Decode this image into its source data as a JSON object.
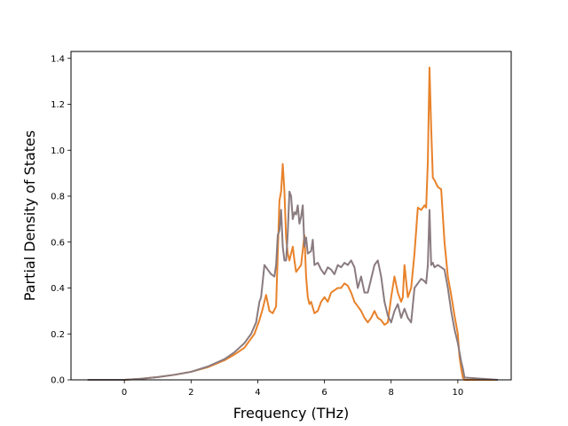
{
  "chart_data": {
    "type": "line",
    "title": "",
    "xlabel": "Frequency (THz)",
    "ylabel": "Partial Density of States",
    "xlim": [
      -1.6,
      11.6
    ],
    "ylim": [
      0.0,
      1.43
    ],
    "xticks": [
      0,
      2,
      4,
      6,
      8,
      10
    ],
    "yticks": [
      0.0,
      0.2,
      0.4,
      0.6,
      0.8,
      1.0,
      1.2,
      1.4
    ],
    "xtick_labels": [
      "0",
      "2",
      "4",
      "6",
      "8",
      "10"
    ],
    "ytick_labels": [
      "0.0",
      "0.2",
      "0.4",
      "0.6",
      "0.8",
      "1.0",
      "1.2",
      "1.4"
    ],
    "grid": false,
    "legend": "none",
    "series": [
      {
        "color": "#e8822a",
        "x": [
          -1.1,
          0.0,
          0.5,
          1.0,
          1.5,
          2.0,
          2.5,
          3.0,
          3.3,
          3.6,
          3.9,
          4.05,
          4.15,
          4.25,
          4.35,
          4.45,
          4.55,
          4.6,
          4.65,
          4.7,
          4.75,
          4.8,
          4.85,
          4.9,
          4.95,
          5.0,
          5.05,
          5.1,
          5.15,
          5.2,
          5.3,
          5.4,
          5.45,
          5.5,
          5.55,
          5.6,
          5.7,
          5.8,
          5.9,
          6.0,
          6.1,
          6.2,
          6.3,
          6.4,
          6.5,
          6.6,
          6.7,
          6.8,
          6.9,
          7.0,
          7.1,
          7.2,
          7.3,
          7.4,
          7.5,
          7.6,
          7.7,
          7.8,
          7.9,
          8.0,
          8.1,
          8.2,
          8.3,
          8.35,
          8.4,
          8.5,
          8.6,
          8.7,
          8.8,
          8.9,
          9.0,
          9.05,
          9.1,
          9.15,
          9.2,
          9.25,
          9.3,
          9.4,
          9.5,
          9.6,
          9.7,
          9.8,
          9.9,
          10.0,
          10.05,
          10.1,
          10.15,
          10.2,
          11.2
        ],
        "values": [
          0.0,
          0.0,
          0.005,
          0.012,
          0.022,
          0.035,
          0.055,
          0.085,
          0.11,
          0.14,
          0.2,
          0.26,
          0.31,
          0.37,
          0.3,
          0.29,
          0.32,
          0.55,
          0.78,
          0.82,
          0.94,
          0.82,
          0.62,
          0.55,
          0.52,
          0.55,
          0.58,
          0.52,
          0.47,
          0.48,
          0.5,
          0.63,
          0.45,
          0.36,
          0.33,
          0.34,
          0.29,
          0.3,
          0.34,
          0.36,
          0.34,
          0.38,
          0.39,
          0.4,
          0.4,
          0.42,
          0.41,
          0.38,
          0.34,
          0.32,
          0.3,
          0.27,
          0.25,
          0.27,
          0.3,
          0.27,
          0.26,
          0.24,
          0.25,
          0.36,
          0.45,
          0.38,
          0.34,
          0.36,
          0.5,
          0.36,
          0.4,
          0.55,
          0.75,
          0.74,
          0.76,
          0.75,
          0.95,
          1.36,
          1.1,
          0.88,
          0.87,
          0.84,
          0.83,
          0.6,
          0.45,
          0.37,
          0.28,
          0.2,
          0.1,
          0.05,
          0.01,
          0.0,
          0.0
        ]
      },
      {
        "color": "#8a7b7f",
        "x": [
          -1.1,
          0.0,
          0.5,
          1.0,
          1.5,
          2.0,
          2.5,
          3.0,
          3.3,
          3.6,
          3.8,
          3.95,
          4.05,
          4.1,
          4.2,
          4.3,
          4.4,
          4.5,
          4.55,
          4.6,
          4.65,
          4.7,
          4.75,
          4.8,
          4.85,
          4.9,
          4.95,
          5.0,
          5.05,
          5.1,
          5.15,
          5.2,
          5.25,
          5.3,
          5.35,
          5.4,
          5.45,
          5.5,
          5.6,
          5.65,
          5.7,
          5.8,
          5.9,
          6.0,
          6.1,
          6.2,
          6.3,
          6.4,
          6.5,
          6.6,
          6.7,
          6.8,
          6.9,
          7.0,
          7.1,
          7.2,
          7.3,
          7.4,
          7.5,
          7.6,
          7.7,
          7.8,
          7.9,
          8.0,
          8.1,
          8.2,
          8.3,
          8.4,
          8.5,
          8.6,
          8.7,
          8.8,
          8.9,
          9.0,
          9.05,
          9.1,
          9.15,
          9.2,
          9.25,
          9.3,
          9.4,
          9.5,
          9.6,
          9.7,
          9.8,
          9.9,
          10.0,
          10.05,
          10.1,
          10.15,
          10.2,
          11.2
        ],
        "values": [
          0.0,
          0.0,
          0.005,
          0.012,
          0.022,
          0.035,
          0.058,
          0.09,
          0.12,
          0.16,
          0.2,
          0.25,
          0.34,
          0.36,
          0.5,
          0.48,
          0.46,
          0.45,
          0.5,
          0.63,
          0.65,
          0.74,
          0.58,
          0.52,
          0.52,
          0.64,
          0.82,
          0.8,
          0.7,
          0.73,
          0.72,
          0.76,
          0.68,
          0.71,
          0.76,
          0.58,
          0.62,
          0.55,
          0.56,
          0.61,
          0.5,
          0.51,
          0.48,
          0.46,
          0.49,
          0.48,
          0.46,
          0.5,
          0.49,
          0.51,
          0.5,
          0.52,
          0.49,
          0.4,
          0.45,
          0.38,
          0.38,
          0.44,
          0.5,
          0.52,
          0.45,
          0.34,
          0.28,
          0.25,
          0.3,
          0.33,
          0.27,
          0.31,
          0.27,
          0.25,
          0.4,
          0.42,
          0.44,
          0.43,
          0.42,
          0.5,
          0.74,
          0.5,
          0.51,
          0.49,
          0.5,
          0.49,
          0.48,
          0.4,
          0.3,
          0.22,
          0.16,
          0.12,
          0.08,
          0.05,
          0.01,
          0.0
        ]
      }
    ]
  }
}
